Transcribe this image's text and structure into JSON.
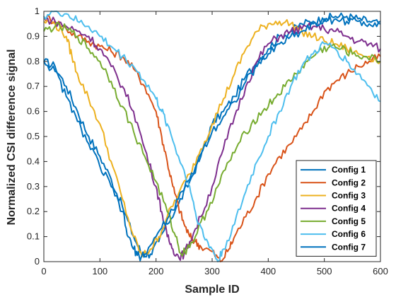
{
  "chart_data": {
    "type": "line",
    "xlabel": "Sample ID",
    "ylabel": "Normalized CSI difference signal",
    "xlim": [
      0,
      600
    ],
    "ylim": [
      0,
      1
    ],
    "xticks": [
      "0",
      "100",
      "200",
      "300",
      "400",
      "500",
      "600"
    ],
    "yticks": [
      "0",
      "0.1",
      "0.2",
      "0.3",
      "0.4",
      "0.5",
      "0.6",
      "0.7",
      "0.8",
      "0.9",
      "1"
    ],
    "grid": false,
    "legend_position": "lower-right",
    "series": [
      {
        "name": "Config 1",
        "color": "#0072BD",
        "points": [
          [
            0,
            0.8
          ],
          [
            20,
            0.78
          ],
          [
            40,
            0.7
          ],
          [
            60,
            0.6
          ],
          [
            80,
            0.5
          ],
          [
            100,
            0.42
          ],
          [
            120,
            0.33
          ],
          [
            140,
            0.22
          ],
          [
            160,
            0.1
          ],
          [
            175,
            0.03
          ],
          [
            190,
            0.03
          ],
          [
            205,
            0.08
          ],
          [
            220,
            0.15
          ],
          [
            240,
            0.23
          ],
          [
            260,
            0.32
          ],
          [
            280,
            0.42
          ],
          [
            300,
            0.55
          ],
          [
            320,
            0.6
          ],
          [
            340,
            0.66
          ],
          [
            360,
            0.74
          ],
          [
            380,
            0.8
          ],
          [
            400,
            0.85
          ],
          [
            420,
            0.9
          ],
          [
            440,
            0.92
          ],
          [
            460,
            0.95
          ],
          [
            480,
            0.96
          ],
          [
            500,
            0.97
          ],
          [
            520,
            0.98
          ],
          [
            540,
            0.98
          ],
          [
            560,
            0.97
          ],
          [
            580,
            0.96
          ],
          [
            600,
            0.95
          ]
        ]
      },
      {
        "name": "Config 2",
        "color": "#D95319",
        "points": [
          [
            0,
            0.98
          ],
          [
            20,
            0.96
          ],
          [
            40,
            0.93
          ],
          [
            60,
            0.9
          ],
          [
            80,
            0.88
          ],
          [
            100,
            0.86
          ],
          [
            120,
            0.84
          ],
          [
            140,
            0.82
          ],
          [
            160,
            0.77
          ],
          [
            180,
            0.7
          ],
          [
            200,
            0.6
          ],
          [
            210,
            0.5
          ],
          [
            220,
            0.4
          ],
          [
            230,
            0.3
          ],
          [
            240,
            0.22
          ],
          [
            250,
            0.15
          ],
          [
            260,
            0.1
          ],
          [
            270,
            0.08
          ],
          [
            280,
            0.06
          ],
          [
            300,
            0.04
          ],
          [
            315,
            0.0
          ],
          [
            330,
            0.05
          ],
          [
            340,
            0.1
          ],
          [
            360,
            0.18
          ],
          [
            380,
            0.26
          ],
          [
            400,
            0.35
          ],
          [
            420,
            0.42
          ],
          [
            440,
            0.47
          ],
          [
            460,
            0.53
          ],
          [
            480,
            0.6
          ],
          [
            500,
            0.68
          ],
          [
            520,
            0.72
          ],
          [
            540,
            0.75
          ],
          [
            560,
            0.78
          ],
          [
            580,
            0.8
          ],
          [
            600,
            0.82
          ]
        ]
      },
      {
        "name": "Config 3",
        "color": "#EDB120",
        "points": [
          [
            0,
            0.96
          ],
          [
            20,
            0.95
          ],
          [
            40,
            0.9
          ],
          [
            50,
            0.82
          ],
          [
            60,
            0.75
          ],
          [
            80,
            0.65
          ],
          [
            100,
            0.55
          ],
          [
            120,
            0.4
          ],
          [
            140,
            0.25
          ],
          [
            160,
            0.1
          ],
          [
            175,
            0.02
          ],
          [
            190,
            0.05
          ],
          [
            205,
            0.1
          ],
          [
            220,
            0.18
          ],
          [
            240,
            0.27
          ],
          [
            260,
            0.35
          ],
          [
            280,
            0.45
          ],
          [
            300,
            0.55
          ],
          [
            320,
            0.65
          ],
          [
            340,
            0.75
          ],
          [
            360,
            0.85
          ],
          [
            380,
            0.92
          ],
          [
            400,
            0.95
          ],
          [
            420,
            0.96
          ],
          [
            440,
            0.95
          ],
          [
            460,
            0.92
          ],
          [
            480,
            0.9
          ],
          [
            500,
            0.88
          ],
          [
            520,
            0.87
          ],
          [
            540,
            0.85
          ],
          [
            560,
            0.83
          ],
          [
            580,
            0.82
          ],
          [
            600,
            0.8
          ]
        ]
      },
      {
        "name": "Config 4",
        "color": "#7E2F8E",
        "points": [
          [
            0,
            0.97
          ],
          [
            20,
            0.96
          ],
          [
            40,
            0.94
          ],
          [
            60,
            0.92
          ],
          [
            80,
            0.9
          ],
          [
            100,
            0.85
          ],
          [
            120,
            0.78
          ],
          [
            140,
            0.7
          ],
          [
            160,
            0.6
          ],
          [
            180,
            0.45
          ],
          [
            200,
            0.3
          ],
          [
            210,
            0.2
          ],
          [
            220,
            0.1
          ],
          [
            230,
            0.05
          ],
          [
            240,
            0.02
          ],
          [
            250,
            0.03
          ],
          [
            260,
            0.08
          ],
          [
            280,
            0.18
          ],
          [
            300,
            0.3
          ],
          [
            320,
            0.45
          ],
          [
            340,
            0.58
          ],
          [
            360,
            0.7
          ],
          [
            380,
            0.8
          ],
          [
            400,
            0.87
          ],
          [
            420,
            0.9
          ],
          [
            440,
            0.92
          ],
          [
            460,
            0.93
          ],
          [
            480,
            0.94
          ],
          [
            500,
            0.93
          ],
          [
            520,
            0.92
          ],
          [
            540,
            0.9
          ],
          [
            560,
            0.88
          ],
          [
            580,
            0.87
          ],
          [
            600,
            0.85
          ]
        ]
      },
      {
        "name": "Config 5",
        "color": "#77AC30",
        "points": [
          [
            0,
            0.92
          ],
          [
            20,
            0.94
          ],
          [
            40,
            0.93
          ],
          [
            60,
            0.9
          ],
          [
            80,
            0.85
          ],
          [
            100,
            0.8
          ],
          [
            120,
            0.72
          ],
          [
            140,
            0.62
          ],
          [
            160,
            0.52
          ],
          [
            180,
            0.42
          ],
          [
            200,
            0.32
          ],
          [
            220,
            0.2
          ],
          [
            235,
            0.1
          ],
          [
            245,
            0.03
          ],
          [
            255,
            0.05
          ],
          [
            270,
            0.1
          ],
          [
            290,
            0.2
          ],
          [
            310,
            0.3
          ],
          [
            330,
            0.4
          ],
          [
            350,
            0.48
          ],
          [
            370,
            0.55
          ],
          [
            390,
            0.6
          ],
          [
            410,
            0.65
          ],
          [
            430,
            0.7
          ],
          [
            450,
            0.75
          ],
          [
            470,
            0.8
          ],
          [
            490,
            0.84
          ],
          [
            510,
            0.86
          ],
          [
            530,
            0.85
          ],
          [
            550,
            0.83
          ],
          [
            570,
            0.82
          ],
          [
            600,
            0.8
          ]
        ]
      },
      {
        "name": "Config 6",
        "color": "#4DBEEE",
        "points": [
          [
            0,
            0.98
          ],
          [
            20,
            1.0
          ],
          [
            40,
            0.99
          ],
          [
            60,
            0.96
          ],
          [
            80,
            0.94
          ],
          [
            100,
            0.9
          ],
          [
            120,
            0.86
          ],
          [
            140,
            0.82
          ],
          [
            160,
            0.78
          ],
          [
            180,
            0.72
          ],
          [
            200,
            0.65
          ],
          [
            210,
            0.6
          ],
          [
            220,
            0.55
          ],
          [
            240,
            0.42
          ],
          [
            260,
            0.3
          ],
          [
            270,
            0.2
          ],
          [
            285,
            0.1
          ],
          [
            300,
            0.05
          ],
          [
            310,
            0.0
          ],
          [
            320,
            0.05
          ],
          [
            340,
            0.15
          ],
          [
            360,
            0.28
          ],
          [
            380,
            0.4
          ],
          [
            400,
            0.5
          ],
          [
            420,
            0.6
          ],
          [
            440,
            0.7
          ],
          [
            460,
            0.78
          ],
          [
            480,
            0.83
          ],
          [
            500,
            0.87
          ],
          [
            520,
            0.85
          ],
          [
            540,
            0.8
          ],
          [
            560,
            0.75
          ],
          [
            580,
            0.7
          ],
          [
            600,
            0.64
          ]
        ]
      },
      {
        "name": "Config 7",
        "color": "#0072BD",
        "points": [
          [
            0,
            0.8
          ],
          [
            20,
            0.76
          ],
          [
            40,
            0.66
          ],
          [
            60,
            0.56
          ],
          [
            80,
            0.47
          ],
          [
            100,
            0.38
          ],
          [
            120,
            0.3
          ],
          [
            140,
            0.2
          ],
          [
            150,
            0.1
          ],
          [
            160,
            0.05
          ],
          [
            170,
            0.02
          ],
          [
            180,
            0.03
          ],
          [
            200,
            0.1
          ],
          [
            220,
            0.17
          ],
          [
            240,
            0.25
          ],
          [
            260,
            0.33
          ],
          [
            280,
            0.43
          ],
          [
            300,
            0.52
          ],
          [
            320,
            0.58
          ],
          [
            340,
            0.64
          ],
          [
            360,
            0.72
          ],
          [
            380,
            0.78
          ],
          [
            400,
            0.83
          ],
          [
            420,
            0.87
          ],
          [
            440,
            0.9
          ],
          [
            460,
            0.92
          ],
          [
            480,
            0.95
          ],
          [
            500,
            0.96
          ],
          [
            520,
            0.97
          ],
          [
            540,
            0.96
          ],
          [
            560,
            0.96
          ],
          [
            580,
            0.95
          ],
          [
            600,
            0.96
          ]
        ]
      }
    ]
  }
}
